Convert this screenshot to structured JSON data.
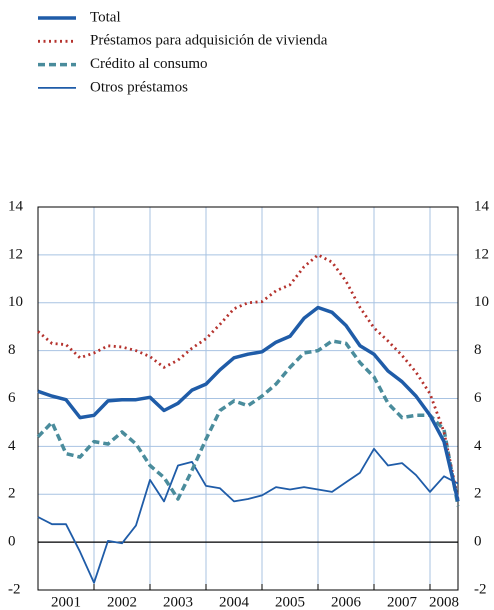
{
  "chart_data": {
    "type": "line",
    "x": [
      2001,
      2001.25,
      2001.5,
      2001.75,
      2002,
      2002.25,
      2002.5,
      2002.75,
      2003,
      2003.25,
      2003.5,
      2003.75,
      2004,
      2004.25,
      2004.5,
      2004.75,
      2005,
      2005.25,
      2005.5,
      2005.75,
      2006,
      2006.25,
      2006.5,
      2006.75,
      2007,
      2007.25,
      2007.5,
      2007.75,
      2008,
      2008.25,
      2008.5
    ],
    "xlim": [
      2001,
      2008.5
    ],
    "xticks": [
      2001,
      2002,
      2003,
      2004,
      2005,
      2006,
      2007,
      2008
    ],
    "ylim": [
      -2,
      14
    ],
    "yticks": [
      -2,
      0,
      2,
      4,
      6,
      8,
      10,
      12,
      14
    ],
    "y2lim": [
      -2,
      14
    ],
    "y2ticks": [
      -2,
      0,
      2,
      4,
      6,
      8,
      10,
      12,
      14
    ],
    "grid": true,
    "legend": "top-left",
    "series": [
      {
        "name": "Total",
        "color": "#1f5ca8",
        "style": "solid-thick",
        "values": [
          6.3,
          6.1,
          5.95,
          5.2,
          5.3,
          5.9,
          5.95,
          5.95,
          6.05,
          5.5,
          5.8,
          6.35,
          6.6,
          7.2,
          7.7,
          7.85,
          7.95,
          8.35,
          8.6,
          9.35,
          9.8,
          9.6,
          9.05,
          8.2,
          7.85,
          7.15,
          6.7,
          6.1,
          5.3,
          4.2,
          1.7
        ]
      },
      {
        "name": "Préstamos para adquisición de vivienda",
        "color": "#b5332e",
        "style": "dotted",
        "values": [
          8.8,
          8.3,
          8.25,
          7.7,
          7.9,
          8.2,
          8.15,
          8.0,
          7.75,
          7.3,
          7.6,
          8.1,
          8.5,
          9.1,
          9.75,
          10.0,
          10.05,
          10.5,
          10.75,
          11.5,
          12.0,
          11.7,
          10.9,
          9.8,
          8.95,
          8.4,
          7.8,
          7.1,
          6.2,
          4.6,
          1.8
        ]
      },
      {
        "name": "Crédito al consumo",
        "color": "#4a8c9c",
        "style": "dashed",
        "values": [
          4.4,
          5.0,
          3.7,
          3.55,
          4.2,
          4.1,
          4.6,
          4.1,
          3.2,
          2.7,
          1.8,
          3.0,
          4.3,
          5.5,
          5.9,
          5.7,
          6.1,
          6.6,
          7.3,
          7.9,
          8.0,
          8.4,
          8.3,
          7.5,
          6.9,
          5.8,
          5.2,
          5.3,
          5.3,
          4.7,
          1.5
        ]
      },
      {
        "name": "Otros préstamos",
        "color": "#1f5ca8",
        "style": "solid-thin",
        "values": [
          1.05,
          0.75,
          0.75,
          -0.4,
          -1.7,
          0.05,
          -0.05,
          0.7,
          2.6,
          1.7,
          3.2,
          3.35,
          2.35,
          2.25,
          1.7,
          1.8,
          1.95,
          2.3,
          2.2,
          2.3,
          2.2,
          2.1,
          2.5,
          2.9,
          3.9,
          3.2,
          3.3,
          2.8,
          2.1,
          2.75,
          2.45
        ]
      }
    ]
  }
}
